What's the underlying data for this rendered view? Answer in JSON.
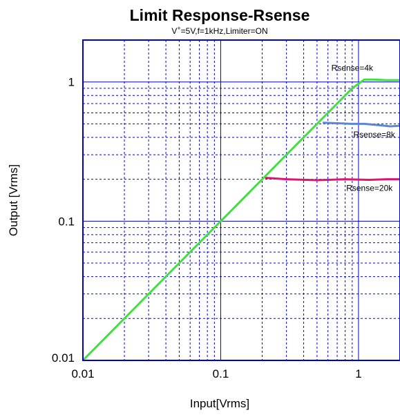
{
  "chart_data": {
    "type": "line",
    "title": "Limit Response-Rsense",
    "subtitle": {
      "prefix": "V",
      "sup": "+",
      "rest": "=5V,f=1kHz,Limiter=ON"
    },
    "xlabel": "Input[Vrms]",
    "ylabel": "Output [Vrms]",
    "xscale": "log",
    "yscale": "log",
    "xlim": [
      0.01,
      2
    ],
    "ylim": [
      0.01,
      2
    ],
    "xticks": [
      {
        "value": 0.01,
        "label": "0.01"
      },
      {
        "value": 0.1,
        "label": "0.1"
      },
      {
        "value": 1,
        "label": "1"
      }
    ],
    "yticks": [
      {
        "value": 0.01,
        "label": "0.01"
      },
      {
        "value": 0.1,
        "label": "0.1"
      },
      {
        "value": 1,
        "label": "1"
      }
    ],
    "grid": true,
    "series": [
      {
        "name": "Rsense=20k",
        "color": "#e0156e",
        "points": [
          [
            0.21,
            0.205
          ],
          [
            0.3,
            0.2
          ],
          [
            0.5,
            0.197
          ],
          [
            0.8,
            0.2
          ],
          [
            1.2,
            0.198
          ],
          [
            1.6,
            0.2
          ],
          [
            2,
            0.2
          ]
        ]
      },
      {
        "name": "Rsense=8k",
        "color": "#5a86d6",
        "points": [
          [
            0.55,
            0.51
          ],
          [
            0.7,
            0.505
          ],
          [
            0.9,
            0.5
          ],
          [
            1.1,
            0.5
          ],
          [
            1.4,
            0.49
          ],
          [
            1.7,
            0.48
          ],
          [
            2,
            0.485
          ]
        ]
      },
      {
        "name": "Rsense=4k",
        "color": "#3fe03f",
        "points": [
          [
            0.01,
            0.01
          ],
          [
            0.05,
            0.05
          ],
          [
            0.1,
            0.1
          ],
          [
            0.3,
            0.3
          ],
          [
            0.6,
            0.6
          ],
          [
            0.9,
            0.9
          ],
          [
            1.1,
            1.04
          ],
          [
            1.3,
            1.04
          ],
          [
            1.6,
            1.03
          ],
          [
            2,
            1.03
          ]
        ]
      }
    ],
    "annotations": [
      {
        "text": "Rsense=4k",
        "x": 0.9,
        "y": 1.2
      },
      {
        "text": "Rsense=8k",
        "x": 1.3,
        "y": 0.4
      },
      {
        "text": "Rsense=20k",
        "x": 1.2,
        "y": 0.165
      }
    ]
  }
}
